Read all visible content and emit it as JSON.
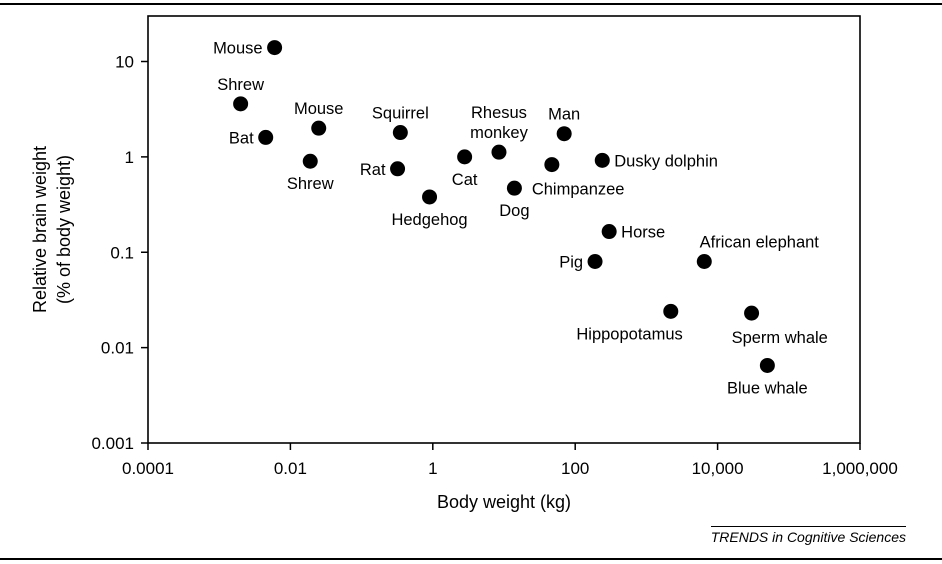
{
  "chart_data": {
    "type": "scatter",
    "title": "",
    "xlabel": "Body weight (kg)",
    "ylabel": [
      "Relative brain weight",
      "(% of body weight)"
    ],
    "x_scale": "log",
    "y_scale": "log",
    "xlim": [
      0.0001,
      1000000
    ],
    "ylim": [
      0.001,
      30
    ],
    "x_ticks": [
      {
        "value": 0.0001,
        "label": "0.0001"
      },
      {
        "value": 0.01,
        "label": "0.01"
      },
      {
        "value": 1,
        "label": "1"
      },
      {
        "value": 100,
        "label": "100"
      },
      {
        "value": 10000,
        "label": "10,000"
      },
      {
        "value": 1000000,
        "label": "1,000,000"
      }
    ],
    "y_ticks": [
      {
        "value": 10,
        "label": "10"
      },
      {
        "value": 1,
        "label": "1"
      },
      {
        "value": 0.1,
        "label": "0.1"
      },
      {
        "value": 0.01,
        "label": "0.01"
      },
      {
        "value": 0.001,
        "label": "0.001"
      }
    ],
    "grid": false,
    "legend": "none",
    "points": [
      {
        "label": [
          "Mouse"
        ],
        "x": 0.006,
        "y": 14,
        "label_pos": "left"
      },
      {
        "label": [
          "Shrew"
        ],
        "x": 0.002,
        "y": 3.6,
        "label_pos": "above"
      },
      {
        "label": [
          "Bat"
        ],
        "x": 0.0045,
        "y": 1.6,
        "label_pos": "left"
      },
      {
        "label": [
          "Mouse"
        ],
        "x": 0.025,
        "y": 2.0,
        "label_pos": "above"
      },
      {
        "label": [
          "Shrew"
        ],
        "x": 0.019,
        "y": 0.9,
        "label_pos": "below"
      },
      {
        "label": [
          "Squirrel"
        ],
        "x": 0.35,
        "y": 1.8,
        "label_pos": "above"
      },
      {
        "label": [
          "Rat"
        ],
        "x": 0.32,
        "y": 0.75,
        "label_pos": "left"
      },
      {
        "label": [
          "Hedgehog"
        ],
        "x": 0.9,
        "y": 0.38,
        "label_pos": "below"
      },
      {
        "label": [
          "Cat"
        ],
        "x": 2.8,
        "y": 1.0,
        "label_pos": "below"
      },
      {
        "label": [
          "Rhesus",
          "monkey"
        ],
        "x": 8.5,
        "y": 1.12,
        "label_pos": "above"
      },
      {
        "label": [
          "Dog"
        ],
        "x": 14,
        "y": 0.47,
        "label_pos": "below"
      },
      {
        "label": [
          "Chimpanzee"
        ],
        "x": 47,
        "y": 0.83,
        "label_pos": "below-right"
      },
      {
        "label": [
          "Man"
        ],
        "x": 70,
        "y": 1.75,
        "label_pos": "above"
      },
      {
        "label": [
          "Dusky dolphin"
        ],
        "x": 240,
        "y": 0.92,
        "label_pos": "right"
      },
      {
        "label": [
          "Horse"
        ],
        "x": 300,
        "y": 0.165,
        "label_pos": "right"
      },
      {
        "label": [
          "Pig"
        ],
        "x": 190,
        "y": 0.08,
        "label_pos": "left"
      },
      {
        "label": [
          "African elephant"
        ],
        "x": 6500,
        "y": 0.08,
        "label_pos": "above-right"
      },
      {
        "label": [
          "Hippopotamus"
        ],
        "x": 2200,
        "y": 0.024,
        "label_pos": "below-left"
      },
      {
        "label": [
          "Sperm whale"
        ],
        "x": 30000,
        "y": 0.023,
        "label_pos": "below-right"
      },
      {
        "label": [
          "Blue whale"
        ],
        "x": 50000,
        "y": 0.0065,
        "label_pos": "below"
      }
    ],
    "marker_color": "#000000"
  },
  "credit": "TRENDS in Cognitive Sciences"
}
